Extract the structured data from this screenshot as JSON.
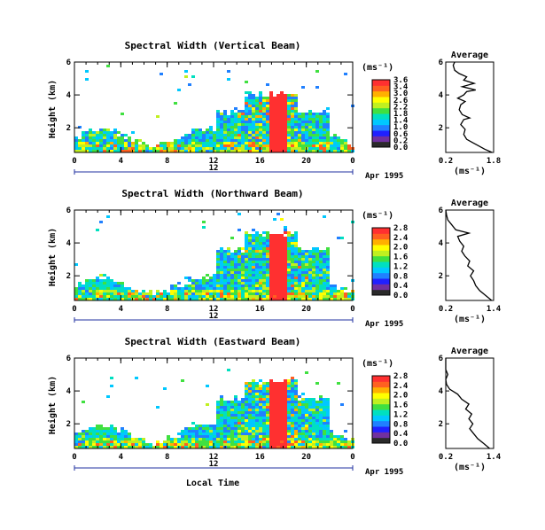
{
  "chart_data": [
    {
      "type": "heatmap",
      "title": "Spectral Width (Vertical Beam)",
      "ylabel": "Height (km)",
      "yticks": [
        "2",
        "4",
        "6"
      ],
      "ylim": [
        0.5,
        6
      ],
      "xticks": [
        "0",
        "4",
        "8",
        "12",
        "16",
        "20",
        "0"
      ],
      "xlim": [
        0,
        24
      ],
      "date_label": "12",
      "date_suffix": "Apr 1995",
      "colorbar": {
        "label": "(ms⁻¹)",
        "ticks": [
          "3.6",
          "3.4",
          "3.0",
          "2.6",
          "2.2",
          "1.8",
          "1.4",
          "1.0",
          "0.6",
          "0.2",
          "0.0"
        ],
        "range": [
          0,
          3.6
        ]
      },
      "average": {
        "title": "Average",
        "xlabel": "(ms⁻¹)",
        "xticks": [
          "0.2",
          "1.8"
        ],
        "xlim": [
          0.2,
          1.8
        ],
        "yticks": [
          "2",
          "4",
          "6"
        ],
        "ylim": [
          0.5,
          6
        ],
        "profile": [
          [
            1.75,
            0.5
          ],
          [
            1.5,
            0.7
          ],
          [
            1.3,
            0.9
          ],
          [
            1.1,
            1.1
          ],
          [
            0.9,
            1.3
          ],
          [
            0.8,
            1.6
          ],
          [
            0.85,
            1.9
          ],
          [
            0.7,
            2.2
          ],
          [
            0.8,
            2.5
          ],
          [
            1.0,
            2.6
          ],
          [
            0.75,
            2.8
          ],
          [
            0.65,
            3.1
          ],
          [
            0.7,
            3.4
          ],
          [
            0.85,
            3.6
          ],
          [
            0.6,
            3.8
          ],
          [
            0.8,
            4.0
          ],
          [
            0.9,
            4.2
          ],
          [
            1.2,
            4.3
          ],
          [
            0.75,
            4.5
          ],
          [
            1.15,
            4.7
          ],
          [
            0.8,
            4.9
          ],
          [
            0.9,
            5.1
          ],
          [
            0.65,
            5.3
          ],
          [
            0.5,
            5.5
          ],
          [
            0.45,
            5.8
          ],
          [
            0.5,
            6.0
          ]
        ]
      }
    },
    {
      "type": "heatmap",
      "title": "Spectral Width (Northward Beam)",
      "ylabel": "Height (km)",
      "yticks": [
        "2",
        "4",
        "6"
      ],
      "ylim": [
        0.5,
        6
      ],
      "xticks": [
        "0",
        "4",
        "8",
        "12",
        "16",
        "20",
        "0"
      ],
      "xlim": [
        0,
        24
      ],
      "date_label": "12",
      "date_suffix": "Apr 1995",
      "colorbar": {
        "label": "(ms⁻¹)",
        "ticks": [
          "2.8",
          "2.4",
          "2.0",
          "1.6",
          "1.2",
          "0.8",
          "0.4",
          "0.0"
        ],
        "range": [
          0,
          2.8
        ]
      },
      "average": {
        "title": "Average",
        "xlabel": "(ms⁻¹)",
        "xticks": [
          "0.2",
          "1.4"
        ],
        "xlim": [
          0.2,
          1.4
        ],
        "yticks": [
          "2",
          "4",
          "6"
        ],
        "ylim": [
          0.5,
          6
        ],
        "profile": [
          [
            1.35,
            0.5
          ],
          [
            1.2,
            0.8
          ],
          [
            1.05,
            1.1
          ],
          [
            0.95,
            1.4
          ],
          [
            0.9,
            1.7
          ],
          [
            0.82,
            2.0
          ],
          [
            0.9,
            2.3
          ],
          [
            0.75,
            2.6
          ],
          [
            0.8,
            2.9
          ],
          [
            0.68,
            3.2
          ],
          [
            0.6,
            3.5
          ],
          [
            0.65,
            3.8
          ],
          [
            0.55,
            4.1
          ],
          [
            0.5,
            4.4
          ],
          [
            0.78,
            4.6
          ],
          [
            0.45,
            4.8
          ],
          [
            0.35,
            5.1
          ],
          [
            0.25,
            5.4
          ],
          [
            0.22,
            5.7
          ],
          [
            0.2,
            6.0
          ]
        ]
      }
    },
    {
      "type": "heatmap",
      "title": "Spectral Width (Eastward Beam)",
      "ylabel": "Height (km)",
      "yticks": [
        "2",
        "4",
        "6"
      ],
      "ylim": [
        0.5,
        6
      ],
      "xticks": [
        "0",
        "4",
        "8",
        "12",
        "16",
        "20",
        "0"
      ],
      "xlim": [
        0,
        24
      ],
      "xlabel": "Local Time",
      "date_label": "12",
      "date_suffix": "Apr 1995",
      "colorbar": {
        "label": "(ms⁻¹)",
        "ticks": [
          "2.8",
          "2.4",
          "2.0",
          "1.6",
          "1.2",
          "0.8",
          "0.4",
          "0.0"
        ],
        "range": [
          0,
          2.8
        ]
      },
      "average": {
        "title": "Average",
        "xlabel": "(ms⁻¹)",
        "xticks": [
          "0.2",
          "1.4"
        ],
        "xlim": [
          0.2,
          1.4
        ],
        "yticks": [
          "2",
          "4",
          "6"
        ],
        "ylim": [
          0.5,
          6
        ],
        "profile": [
          [
            1.3,
            0.5
          ],
          [
            1.15,
            0.8
          ],
          [
            1.0,
            1.1
          ],
          [
            0.9,
            1.4
          ],
          [
            0.8,
            1.7
          ],
          [
            0.88,
            2.0
          ],
          [
            0.78,
            2.3
          ],
          [
            0.85,
            2.6
          ],
          [
            0.7,
            2.9
          ],
          [
            0.78,
            3.2
          ],
          [
            0.6,
            3.5
          ],
          [
            0.5,
            3.8
          ],
          [
            0.3,
            4.1
          ],
          [
            0.22,
            4.4
          ],
          [
            0.2,
            4.7
          ],
          [
            0.25,
            5.0
          ],
          [
            0.2,
            5.3
          ],
          [
            0.2,
            6.0
          ]
        ]
      }
    }
  ]
}
